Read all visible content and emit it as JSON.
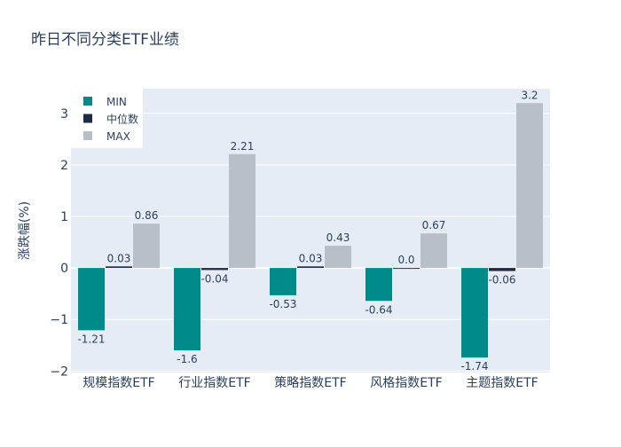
{
  "chart_data": {
    "type": "bar",
    "title": "昨日不同分类ETF业绩",
    "xlabel": "",
    "ylabel": "涨跌幅(%)",
    "ylim": [
      -2.03,
      3.48
    ],
    "yticks": [
      -2,
      -1,
      0,
      1,
      2,
      3
    ],
    "ytick_labels": [
      "−2",
      "−1",
      "0",
      "1",
      "2",
      "3"
    ],
    "categories": [
      "规模指数ETF",
      "行业指数ETF",
      "策略指数ETF",
      "风格指数ETF",
      "主题指数ETF"
    ],
    "series": [
      {
        "name": "MIN",
        "color": "#008b8a",
        "values": [
          -1.21,
          -1.6,
          -0.53,
          -0.64,
          -1.74
        ],
        "labels": [
          "-1.21",
          "-1.6",
          "-0.53",
          "-0.64",
          "-1.74"
        ]
      },
      {
        "name": "中位数",
        "color": "#1f2a44",
        "values": [
          0.03,
          -0.04,
          0.03,
          0.0,
          -0.06
        ],
        "labels": [
          "0.03",
          "-0.04",
          "0.03",
          "0.0",
          "-0.06"
        ]
      },
      {
        "name": "MAX",
        "color": "#b8bfc8",
        "values": [
          0.86,
          2.21,
          0.43,
          0.67,
          3.2
        ],
        "labels": [
          "0.86",
          "2.21",
          "0.43",
          "0.67",
          "3.2"
        ]
      }
    ],
    "legend_position": "top-left",
    "grid": true
  }
}
